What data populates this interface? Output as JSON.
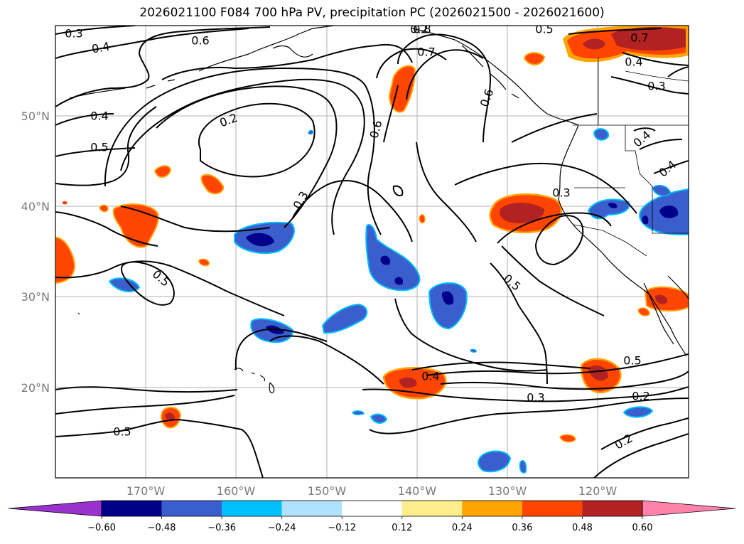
{
  "title": "2026021100 F084 700 hPa PV, precipitation PC (2026021500 - 2026021600)",
  "map": {
    "projection": "PlateCarree",
    "lon_range": [
      -180,
      -110
    ],
    "lat_range": [
      10,
      60
    ],
    "lat_labels": [
      "50°N",
      "40°N",
      "30°N",
      "20°N"
    ],
    "lon_labels": [
      "170°W",
      "160°W",
      "150°W",
      "140°W",
      "130°W",
      "120°W"
    ],
    "contour_labels": [
      "0.3",
      "0.4",
      "0.6",
      "0.8",
      "0.5",
      "0.7",
      "0.6",
      "0.4",
      "0.3",
      "0.7",
      "0.4",
      "0.2",
      "0.5",
      "0.6",
      "0.4",
      "0.4",
      "0.3",
      "0.3",
      "0.5",
      "0.5",
      "0.5",
      "0.4",
      "0.3",
      "0.5",
      "0.2",
      "0.2",
      "0.2"
    ]
  },
  "colorbar": {
    "ticks": [
      "−0.60",
      "−0.48",
      "−0.36",
      "−0.24",
      "−0.12",
      "0.12",
      "0.24",
      "0.36",
      "0.48",
      "0.60"
    ],
    "colors": [
      "#9932cc",
      "#00008b",
      "#3a5fcd",
      "#00bfff",
      "#b0e2ff",
      "#ffffff",
      "#ffec8b",
      "#ffa500",
      "#ff4500",
      "#b22222",
      "#ff82ab"
    ]
  },
  "palette": {
    "neg_inner": "#00008b",
    "neg_mid": "#3a5fcd",
    "neg_edge": "#00bfff",
    "pos_inner": "#b22222",
    "pos_mid": "#ff4500",
    "pos_edge": "#ffa500"
  }
}
